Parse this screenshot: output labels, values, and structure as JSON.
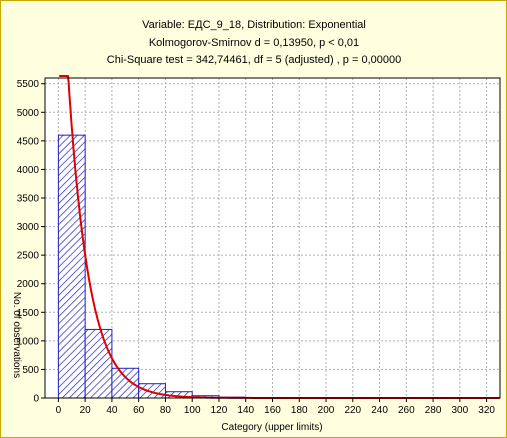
{
  "chart_data": {
    "type": "bar",
    "title_lines": [
      "Variable: ЕДС_9_18, Distribution: Exponential",
      "Kolmogorov-Smirnov d = 0,13950, p < 0,01",
      "Chi-Square test = 342,74461, df = 5 (adjusted) , p = 0,00000"
    ],
    "xlabel": "Category (upper limits)",
    "ylabel": "No. of observations",
    "xlim": [
      -10,
      330
    ],
    "ylim": [
      0,
      5600
    ],
    "xticks": [
      0,
      20,
      40,
      60,
      80,
      100,
      120,
      140,
      160,
      180,
      200,
      220,
      240,
      260,
      280,
      300,
      320
    ],
    "yticks": [
      0,
      500,
      1000,
      1500,
      2000,
      2500,
      3000,
      3500,
      4000,
      4500,
      5000,
      5500
    ],
    "grid": true,
    "bins": [
      {
        "from": 0,
        "to": 20,
        "value": 4600
      },
      {
        "from": 20,
        "to": 40,
        "value": 1200
      },
      {
        "from": 40,
        "to": 60,
        "value": 520
      },
      {
        "from": 60,
        "to": 80,
        "value": 250
      },
      {
        "from": 80,
        "to": 100,
        "value": 110
      },
      {
        "from": 100,
        "to": 120,
        "value": 40
      },
      {
        "from": 120,
        "to": 140,
        "value": 15
      }
    ],
    "fitted_curve": {
      "distribution": "Exponential",
      "amplitude": 9000,
      "lambda": 0.064,
      "color": "#e00000"
    },
    "bar_color": "#2020c0"
  }
}
